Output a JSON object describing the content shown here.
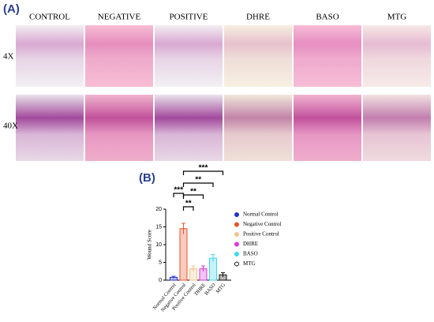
{
  "panel_a": {
    "label": "(A)",
    "columns": [
      "CONTROL",
      "NEGATIVE",
      "POSITIVE",
      "DHRE",
      "BASO",
      "MTG"
    ],
    "rows": [
      "4X",
      "40X"
    ]
  },
  "chart_data": {
    "type": "bar",
    "label": "(B)",
    "ylabel": "Wound Score",
    "categories": [
      "Normal Control",
      "Negative Control",
      "Positive Control",
      "DHRE",
      "BASO",
      "MTG"
    ],
    "values": [
      0.8,
      14.5,
      3.2,
      3.2,
      6.2,
      1.5
    ],
    "errors": [
      0.3,
      1.5,
      0.8,
      0.8,
      1.0,
      0.6
    ],
    "colors": [
      "#2233cc",
      "#e8542b",
      "#f5c28e",
      "#d63bd6",
      "#3fd6ee",
      "#111111"
    ],
    "ylim": [
      0,
      20
    ],
    "yticks": [
      0,
      5,
      10,
      15,
      20
    ],
    "legend": "right",
    "annotations": [
      "***",
      "**",
      "**",
      "**",
      "***"
    ]
  }
}
